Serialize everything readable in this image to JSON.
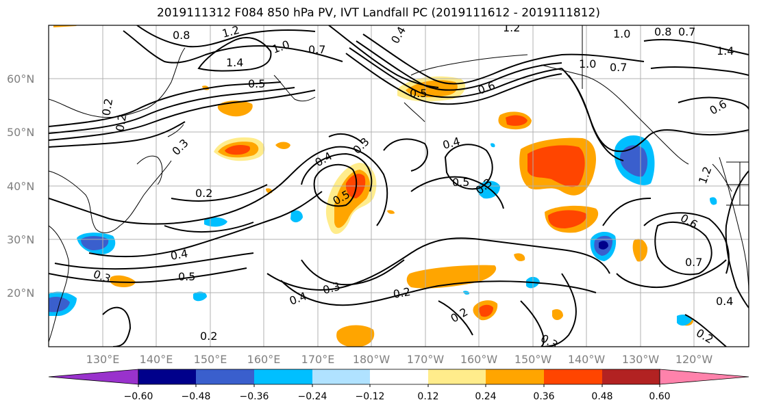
{
  "title": "2019111312 F084 850 hPa PV, IVT Landfall PC (2019111612 - 2019111812)",
  "map": {
    "lon_labels": [
      "130°E",
      "140°E",
      "150°E",
      "160°E",
      "170°E",
      "180°W",
      "170°W",
      "160°W",
      "150°W",
      "140°W",
      "130°W",
      "120°W"
    ],
    "lat_labels": [
      "60°N",
      "50°N",
      "40°N",
      "30°N",
      "20°N"
    ],
    "contour_labels": [
      "0.8",
      "1.2",
      "1.4",
      "1.0",
      "0.7",
      "1.2",
      "1.0",
      "0.8",
      "0.7",
      "1.4",
      "1.0",
      "0.7",
      "0.6",
      "0.3",
      "0.2",
      "0.4",
      "0.3",
      "0.4",
      "0.5",
      "0.4",
      "0.5",
      "0.3",
      "0.2",
      "0.4",
      "0.5",
      "0.3",
      "0.4",
      "0.3",
      "0.2",
      "0.2",
      "0.2",
      "0.3",
      "0.7",
      "0.6",
      "0.4",
      "0.2",
      "0.2",
      "1.2",
      "0.5",
      "0.5",
      "0.6"
    ],
    "grid": true
  },
  "colorbar": {
    "tick_labels": [
      "−0.60",
      "−0.48",
      "−0.36",
      "−0.24",
      "−0.12",
      "0.12",
      "0.24",
      "0.36",
      "0.48",
      "0.60"
    ],
    "colors": [
      "#9932cc",
      "#00008b",
      "#3a5fcd",
      "#00bfff",
      "#b0e2ff",
      "#ffffff",
      "#ffec8b",
      "#ffa500",
      "#ff4500",
      "#b22222",
      "#ff82ab"
    ]
  },
  "colors": {
    "pos_1": "#ffec8b",
    "pos_2": "#ffa500",
    "pos_3": "#ff4500",
    "neg_1": "#b0e2ff",
    "neg_2": "#00bfff",
    "neg_3": "#3a5fcd",
    "neg_4": "#00008b"
  }
}
